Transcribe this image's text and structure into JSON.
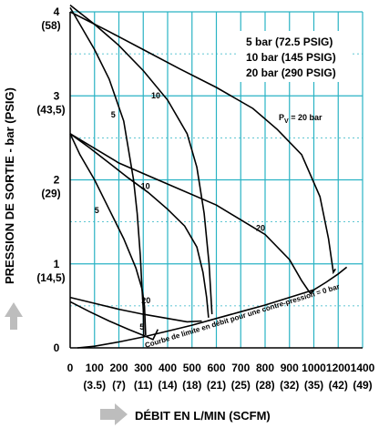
{
  "chart_data": {
    "type": "line",
    "xlabel": "DÉBIT EN L/MIN (SCFM)",
    "ylabel": "PRESSION DE SORTIE - bar (PSIG)",
    "xlim": [
      0,
      1400
    ],
    "ylim": [
      0,
      4
    ],
    "grid": true,
    "colors": {
      "grid": "#2ab3c4",
      "curve": "#000000",
      "arrow": "#bdbdbd"
    },
    "x_ticks": [
      {
        "value": 0,
        "label": "0",
        "sub": ""
      },
      {
        "value": 100,
        "label": "100",
        "sub": "(3.5)"
      },
      {
        "value": 200,
        "label": "200",
        "sub": "(7)"
      },
      {
        "value": 300,
        "label": "300",
        "sub": "(11)"
      },
      {
        "value": 400,
        "label": "400",
        "sub": "(14)"
      },
      {
        "value": 500,
        "label": "500",
        "sub": "(18)"
      },
      {
        "value": 600,
        "label": "600",
        "sub": "(21)"
      },
      {
        "value": 700,
        "label": "700",
        "sub": "(25)"
      },
      {
        "value": 800,
        "label": "800",
        "sub": "(28)"
      },
      {
        "value": 900,
        "label": "900",
        "sub": "(32)"
      },
      {
        "value": 1000,
        "label": "1000",
        "sub": "(35)"
      },
      {
        "value": 1200,
        "label": "1200",
        "sub": "(42)"
      },
      {
        "value": 1400,
        "label": "1400",
        "sub": "(49)"
      }
    ],
    "y_ticks": [
      {
        "value": 0,
        "label": "0",
        "sub": ""
      },
      {
        "value": 1,
        "label": "1",
        "sub": "(14,5)"
      },
      {
        "value": 2,
        "label": "2",
        "sub": "(29)"
      },
      {
        "value": 3,
        "label": "3",
        "sub": "(43,5)"
      },
      {
        "value": 4,
        "label": "4",
        "sub": "(58)"
      }
    ],
    "legend": [
      "5 bar   (72.5 PSIG)",
      "10 bar  (145 PSIG)",
      "20 bar  (290 PSIG)"
    ],
    "annotations": {
      "pv": "P",
      "pv_sub": "V",
      "pv_rest": " = 20 bar",
      "limit_curve": "Courbe de limite en débit pour une contre-pression = 0 bar"
    },
    "limit_curve": {
      "x": [
        30,
        100,
        200,
        300,
        400,
        500,
        600,
        700,
        800,
        900,
        1000,
        1100,
        1200,
        1270
      ],
      "y": [
        0.0,
        0.02,
        0.07,
        0.13,
        0.2,
        0.27,
        0.35,
        0.43,
        0.51,
        0.6,
        0.69,
        0.78,
        0.88,
        0.96
      ]
    },
    "series": [
      {
        "group": "setpoint 4 bar",
        "label": "5",
        "x": [
          0,
          50,
          100,
          160,
          220,
          260,
          275,
          288,
          295,
          300,
          302
        ],
        "y": [
          4.05,
          3.8,
          3.55,
          3.2,
          2.7,
          2.0,
          1.6,
          1.1,
          0.7,
          0.45,
          0.13
        ]
      },
      {
        "group": "setpoint 4 bar",
        "label": "10",
        "x": [
          0,
          100,
          200,
          300,
          400,
          480,
          520,
          550,
          570,
          582
        ],
        "y": [
          4.08,
          3.85,
          3.6,
          3.3,
          2.95,
          2.55,
          2.15,
          1.6,
          1.0,
          0.4
        ]
      },
      {
        "group": "setpoint 4 bar",
        "label": "20",
        "x": [
          0,
          150,
          300,
          450,
          600,
          750,
          850,
          950,
          1050,
          1120,
          1160,
          1178
        ],
        "y": [
          4.0,
          3.78,
          3.55,
          3.32,
          3.1,
          2.85,
          2.6,
          2.3,
          1.8,
          1.3,
          0.9,
          0.94
        ]
      },
      {
        "group": "setpoint 2.5 bar",
        "label": "5",
        "x": [
          0,
          40,
          100,
          160,
          220,
          270,
          295,
          305,
          310
        ],
        "y": [
          2.55,
          2.3,
          2.0,
          1.65,
          1.3,
          0.95,
          0.7,
          0.5,
          0.15
        ]
      },
      {
        "group": "setpoint 2.5 bar",
        "label": "10",
        "x": [
          0,
          80,
          160,
          240,
          320,
          400,
          470,
          520,
          545,
          560,
          568
        ],
        "y": [
          2.55,
          2.38,
          2.2,
          2.02,
          1.85,
          1.65,
          1.45,
          1.2,
          0.9,
          0.6,
          0.36
        ]
      },
      {
        "group": "setpoint 2.5 bar",
        "label": "20",
        "x": [
          0,
          200,
          400,
          600,
          800,
          900,
          950,
          985,
          1000
        ],
        "y": [
          2.55,
          2.2,
          1.95,
          1.7,
          1.35,
          1.05,
          0.8,
          0.65,
          0.68
        ]
      },
      {
        "group": "setpoint 0.6 bar",
        "label": "20",
        "x": [
          0,
          100,
          200,
          300,
          400,
          480,
          540
        ],
        "y": [
          0.6,
          0.53,
          0.46,
          0.4,
          0.35,
          0.31,
          0.32
        ]
      },
      {
        "group": "setpoint 0.6 bar",
        "label": "5",
        "x": [
          0,
          80,
          160,
          240,
          300,
          340,
          360
        ],
        "y": [
          0.55,
          0.43,
          0.32,
          0.22,
          0.15,
          0.1,
          0.22
        ]
      }
    ]
  }
}
